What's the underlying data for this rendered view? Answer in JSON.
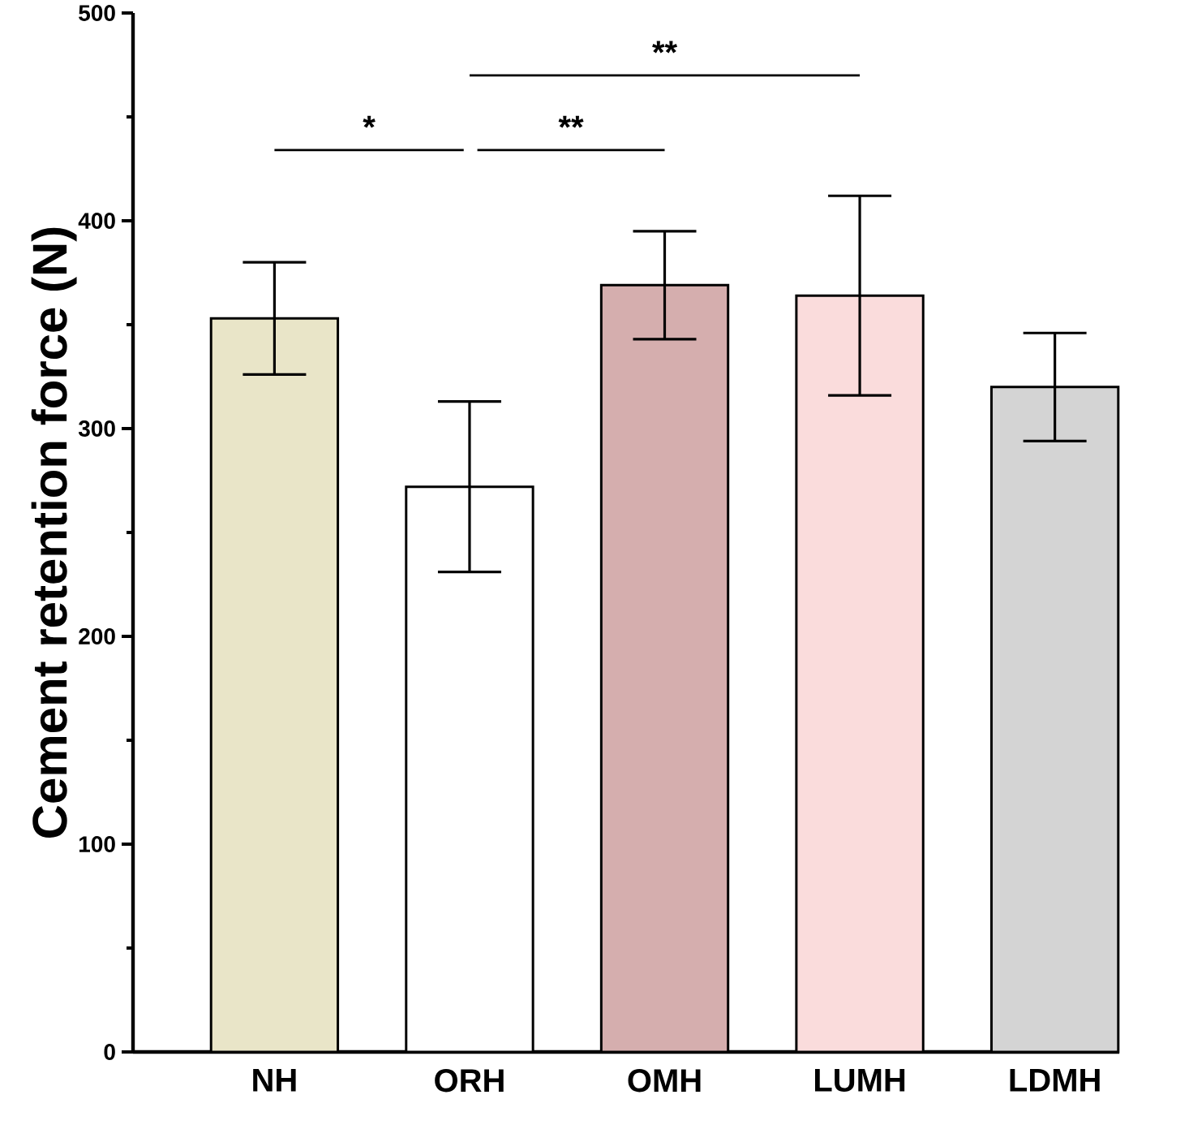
{
  "chart_data": {
    "type": "bar",
    "ylabel": "Cement retention force  (N)",
    "categories": [
      "NH",
      "ORH",
      "OMH",
      "LUMH",
      "LDMH"
    ],
    "values": [
      353,
      272,
      369,
      364,
      320
    ],
    "errors": [
      27,
      41,
      26,
      48,
      26
    ],
    "colors": [
      "#e9e5c8",
      "#ffffff",
      "#d5aeae",
      "#fadcdc",
      "#d4d4d4"
    ],
    "ylim": [
      0,
      500
    ],
    "yticks": [
      0,
      100,
      200,
      300,
      400,
      500
    ],
    "annotations": [
      "*",
      "**",
      "**"
    ]
  }
}
